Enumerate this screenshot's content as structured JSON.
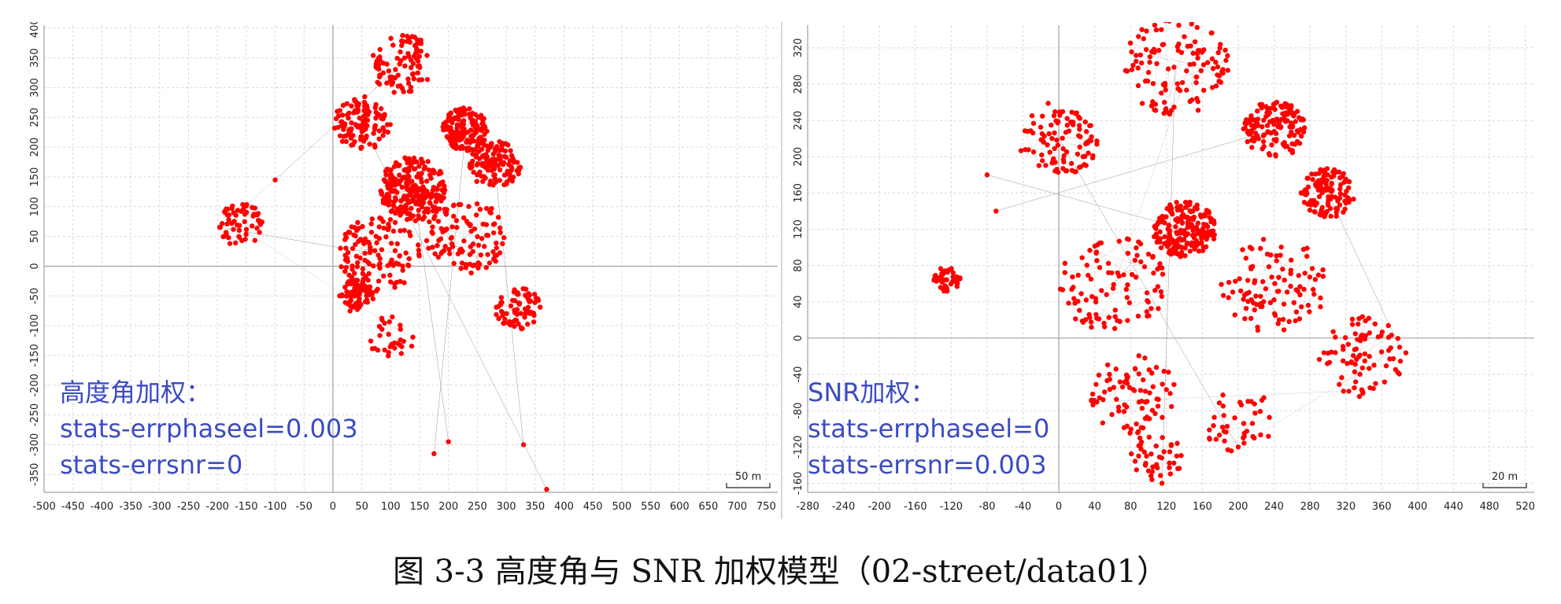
{
  "chart_data": [
    {
      "type": "scatter",
      "title": "",
      "xlabel": "",
      "ylabel": "",
      "xlim": [
        -500,
        770
      ],
      "ylim": [
        -380,
        405
      ],
      "xticks": [
        -500,
        -450,
        -400,
        -350,
        -300,
        -250,
        -200,
        -150,
        -100,
        -50,
        0,
        50,
        100,
        150,
        200,
        250,
        300,
        350,
        400,
        450,
        500,
        550,
        600,
        650,
        700,
        750
      ],
      "yticks": [
        -350,
        -300,
        -250,
        -200,
        -150,
        -100,
        -50,
        0,
        50,
        100,
        150,
        200,
        250,
        300,
        350,
        400
      ],
      "scale_bar": "50 m",
      "annotation": [
        "高度角加权：",
        "stats-errphaseel=0.003",
        "stats-errsnr=0"
      ],
      "marker_color": "#ff0000",
      "grid": true,
      "clusters": [
        {
          "cx": 140,
          "cy": 130,
          "r": 60,
          "n": 240
        },
        {
          "cx": 230,
          "cy": 230,
          "r": 40,
          "n": 160
        },
        {
          "cx": 280,
          "cy": 170,
          "r": 45,
          "n": 120
        },
        {
          "cx": 50,
          "cy": 240,
          "r": 50,
          "n": 110
        },
        {
          "cx": 120,
          "cy": 340,
          "r": 55,
          "n": 90
        },
        {
          "cx": 80,
          "cy": 20,
          "r": 70,
          "n": 120
        },
        {
          "cx": 40,
          "cy": -50,
          "r": 30,
          "n": 90
        },
        {
          "cx": 230,
          "cy": 50,
          "r": 70,
          "n": 110
        },
        {
          "cx": 320,
          "cy": -70,
          "r": 40,
          "n": 70
        },
        {
          "cx": -160,
          "cy": 70,
          "r": 40,
          "n": 60
        },
        {
          "cx": 100,
          "cy": -120,
          "r": 40,
          "n": 30
        }
      ],
      "outliers": [
        [
          200,
          -295
        ],
        [
          175,
          -315
        ],
        [
          330,
          -300
        ],
        [
          370,
          -375
        ],
        [
          -100,
          145
        ],
        [
          -195,
          65
        ]
      ]
    },
    {
      "type": "scatter",
      "title": "",
      "xlabel": "",
      "ylabel": "",
      "xlim": [
        -280,
        530
      ],
      "ylim": [
        -170,
        345
      ],
      "xticks": [
        -280,
        -240,
        -200,
        -160,
        -120,
        -80,
        -40,
        0,
        40,
        80,
        120,
        160,
        200,
        240,
        280,
        320,
        360,
        400,
        440,
        480,
        520
      ],
      "yticks": [
        -160,
        -120,
        -80,
        -40,
        0,
        40,
        80,
        120,
        160,
        200,
        240,
        280,
        320
      ],
      "scale_bar": "20 m",
      "annotation": [
        "SNR加权：",
        "stats-errphaseel=0",
        "stats-errsnr=0.003"
      ],
      "marker_color": "#ff0000",
      "grid": true,
      "clusters": [
        {
          "cx": 140,
          "cy": 120,
          "r": 35,
          "n": 200
        },
        {
          "cx": 240,
          "cy": 230,
          "r": 35,
          "n": 140
        },
        {
          "cx": 300,
          "cy": 160,
          "r": 30,
          "n": 120
        },
        {
          "cx": 0,
          "cy": 220,
          "r": 45,
          "n": 100
        },
        {
          "cx": 130,
          "cy": 300,
          "r": 60,
          "n": 120
        },
        {
          "cx": 60,
          "cy": 60,
          "r": 60,
          "n": 100
        },
        {
          "cx": 240,
          "cy": 60,
          "r": 60,
          "n": 100
        },
        {
          "cx": 340,
          "cy": -20,
          "r": 50,
          "n": 80
        },
        {
          "cx": 80,
          "cy": -60,
          "r": 50,
          "n": 80
        },
        {
          "cx": -125,
          "cy": 65,
          "r": 15,
          "n": 40
        },
        {
          "cx": 110,
          "cy": -130,
          "r": 30,
          "n": 40
        },
        {
          "cx": 200,
          "cy": -90,
          "r": 40,
          "n": 40
        }
      ],
      "outliers": [
        [
          -80,
          180
        ],
        [
          -70,
          140
        ],
        [
          380,
          -10
        ],
        [
          200,
          -120
        ],
        [
          115,
          -160
        ]
      ]
    }
  ],
  "caption": "图 3-3  高度角与 SNR 加权模型（02-street/data01）"
}
